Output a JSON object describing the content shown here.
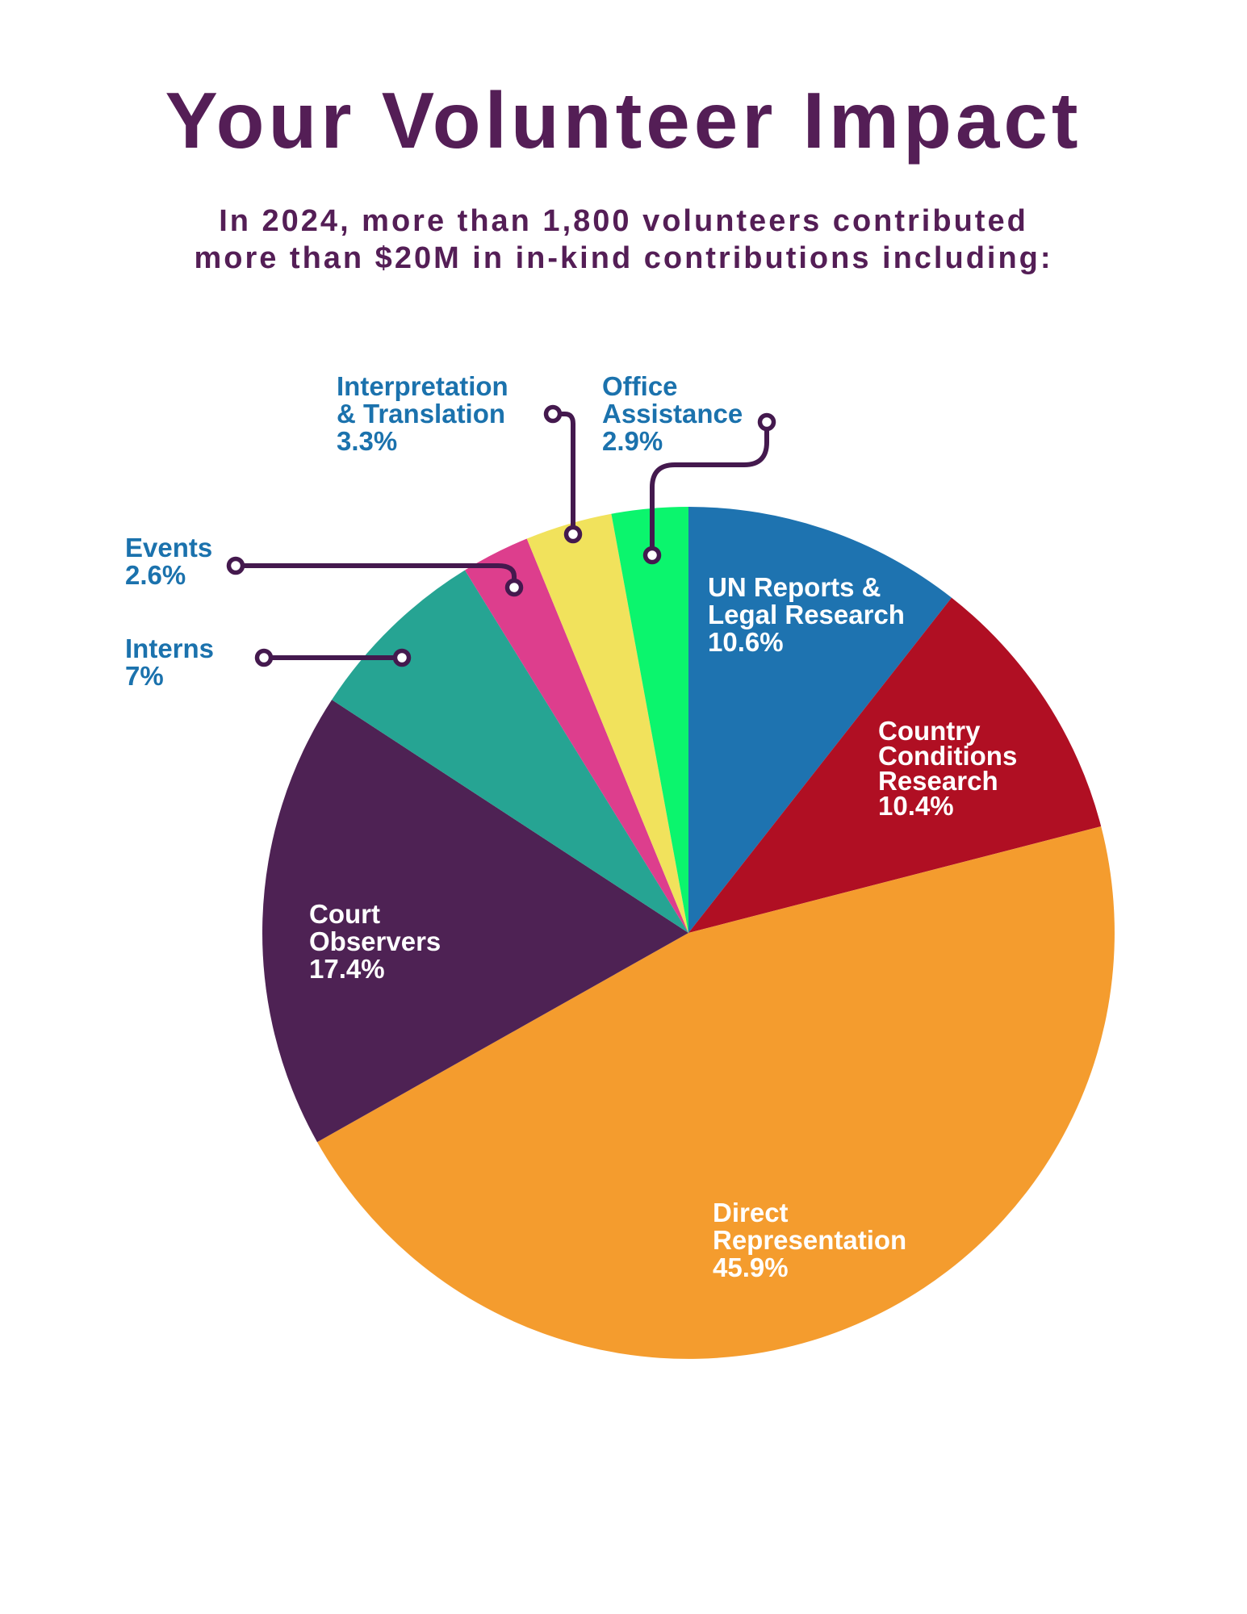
{
  "page": {
    "background_color": "#FFFFFF",
    "title": "Your Volunteer Impact",
    "title_color": "#541E56",
    "subtitle_lines": [
      "In 2024, more than 1,800 volunteers contributed",
      "more than $20M in in-kind contributions including:"
    ]
  },
  "chart_data": {
    "type": "pie",
    "title": "Your Volunteer Impact",
    "start_position": "12-oclock",
    "direction": "clockwise",
    "total_percent": 100.1,
    "legend_position": "none",
    "leader_line_color": "#44194E",
    "inside_label_color": "#FFFFFF",
    "outside_label_color": "#1B72AD",
    "slices": [
      {
        "id": "un-reports-legal-research",
        "label": "UN Reports & Legal Research",
        "value": 10.6,
        "percent_label": "10.6%",
        "color": "#1E73B0",
        "label_lines": [
          "UN Reports &",
          "Legal Research",
          "10.6%"
        ],
        "label_position": "inside"
      },
      {
        "id": "country-conditions-research",
        "label": "Country Conditions Research",
        "value": 10.4,
        "percent_label": "10.4%",
        "color": "#B00F23",
        "label_lines": [
          "Country",
          "Conditions",
          "Research",
          "10.4%"
        ],
        "label_position": "inside"
      },
      {
        "id": "direct-representation",
        "label": "Direct Representation",
        "value": 45.9,
        "percent_label": "45.9%",
        "color": "#F49C2E",
        "label_lines": [
          "Direct",
          "Representation",
          "45.9%"
        ],
        "label_position": "inside"
      },
      {
        "id": "court-observers",
        "label": "Court Observers",
        "value": 17.4,
        "percent_label": "17.4%",
        "color": "#4E2254",
        "label_lines": [
          "Court",
          "Observers",
          "17.4%"
        ],
        "label_position": "inside"
      },
      {
        "id": "interns",
        "label": "Interns",
        "value": 7,
        "percent_label": "7%",
        "color": "#26A493",
        "label_lines": [
          "Interns",
          "7%"
        ],
        "label_position": "outside-left"
      },
      {
        "id": "events",
        "label": "Events",
        "value": 2.6,
        "percent_label": "2.6%",
        "color": "#DD3E8D",
        "label_lines": [
          "Events",
          "2.6%"
        ],
        "label_position": "outside-left"
      },
      {
        "id": "interpretation-translation",
        "label": "Interpretation & Translation",
        "value": 3.3,
        "percent_label": "3.3%",
        "color": "#F1E25C",
        "label_lines": [
          "Interpretation",
          "& Translation",
          "3.3%"
        ],
        "label_position": "outside-top"
      },
      {
        "id": "office-assistance",
        "label": "Office Assistance",
        "value": 2.9,
        "percent_label": "2.9%",
        "color": "#0BF56D",
        "label_lines": [
          "Office",
          "Assistance",
          "2.9%"
        ],
        "label_position": "outside-top"
      }
    ]
  }
}
